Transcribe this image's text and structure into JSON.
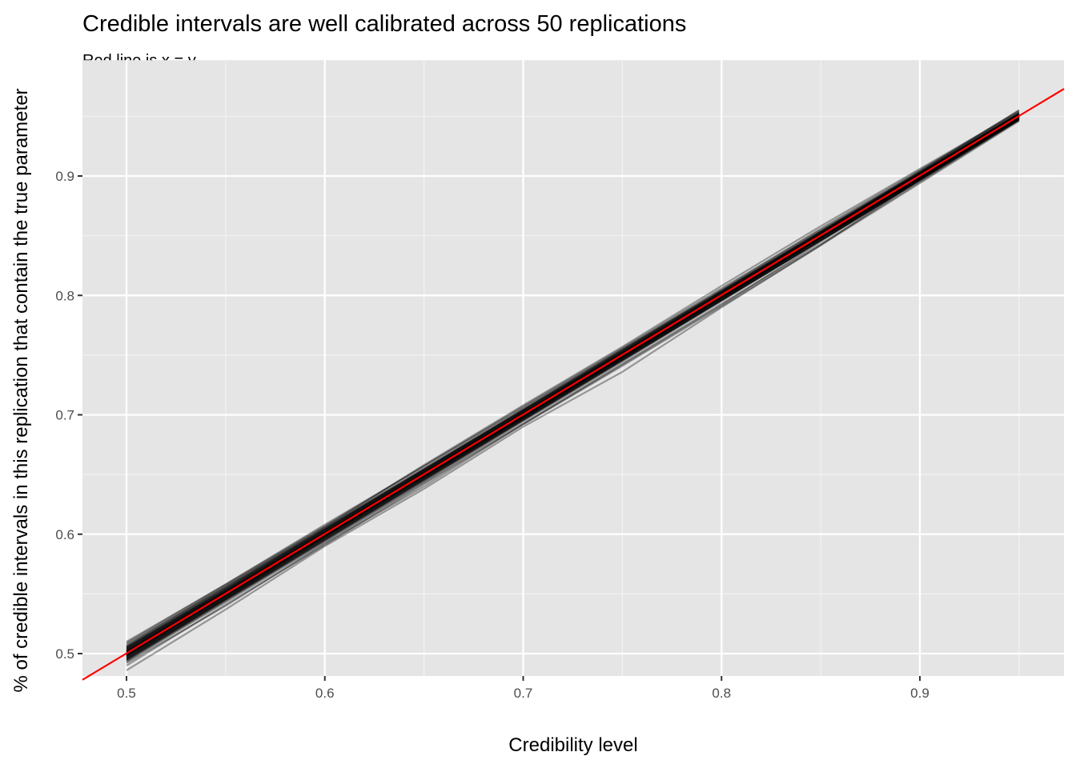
{
  "chart_data": {
    "type": "line",
    "title": "Credible intervals are well calibrated across 50 replications",
    "subtitle": "Red line is x = y",
    "xlabel": "Credibility level",
    "ylabel": "% of credible intervals in this replication that contain the true parameter",
    "xlim": [
      0.478,
      0.973
    ],
    "ylim": [
      0.481,
      0.997
    ],
    "x_ticks": [
      0.5,
      0.6,
      0.7,
      0.8,
      0.9
    ],
    "x_tick_labels": [
      "0.5",
      "0.6",
      "0.7",
      "0.8",
      "0.9"
    ],
    "y_ticks": [
      0.5,
      0.6,
      0.7,
      0.8,
      0.9
    ],
    "y_tick_labels": [
      "0.5",
      "0.6",
      "0.7",
      "0.8",
      "0.9"
    ],
    "grid": true,
    "legend": "none",
    "reference_line": {
      "label": "x = y",
      "slope": 1,
      "intercept": 0,
      "color": "#ff0000"
    },
    "series_color": "#000000",
    "panel_color": "#e5e5e5",
    "x": [
      0.5,
      0.55,
      0.6,
      0.65,
      0.7,
      0.75,
      0.8,
      0.85,
      0.9,
      0.95
    ],
    "replications": [
      [
        0.51,
        0.558,
        0.607,
        0.657,
        0.706,
        0.755,
        0.804,
        0.853,
        0.904,
        0.955
      ],
      [
        0.486,
        0.537,
        0.59,
        0.638,
        0.69,
        0.736,
        0.79,
        0.842,
        0.897,
        0.948
      ],
      [
        0.505,
        0.553,
        0.603,
        0.652,
        0.702,
        0.752,
        0.802,
        0.851,
        0.901,
        0.951
      ],
      [
        0.495,
        0.546,
        0.596,
        0.646,
        0.697,
        0.747,
        0.797,
        0.848,
        0.898,
        0.948
      ],
      [
        0.5,
        0.551,
        0.6,
        0.65,
        0.7,
        0.75,
        0.8,
        0.85,
        0.9,
        0.95
      ],
      [
        0.503,
        0.552,
        0.601,
        0.651,
        0.701,
        0.751,
        0.801,
        0.851,
        0.901,
        0.951
      ],
      [
        0.497,
        0.547,
        0.597,
        0.647,
        0.698,
        0.748,
        0.798,
        0.848,
        0.898,
        0.949
      ],
      [
        0.508,
        0.556,
        0.605,
        0.655,
        0.704,
        0.753,
        0.803,
        0.852,
        0.903,
        0.953
      ],
      [
        0.492,
        0.54,
        0.592,
        0.64,
        0.692,
        0.742,
        0.792,
        0.845,
        0.897,
        0.949
      ],
      [
        0.501,
        0.55,
        0.599,
        0.649,
        0.699,
        0.749,
        0.799,
        0.849,
        0.899,
        0.95
      ],
      [
        0.506,
        0.556,
        0.606,
        0.658,
        0.708,
        0.757,
        0.808,
        0.858,
        0.906,
        0.954
      ],
      [
        0.494,
        0.545,
        0.594,
        0.644,
        0.695,
        0.745,
        0.796,
        0.846,
        0.897,
        0.948
      ],
      [
        0.499,
        0.549,
        0.599,
        0.65,
        0.7,
        0.75,
        0.8,
        0.85,
        0.9,
        0.95
      ],
      [
        0.504,
        0.554,
        0.604,
        0.653,
        0.703,
        0.753,
        0.803,
        0.853,
        0.902,
        0.952
      ],
      [
        0.496,
        0.546,
        0.596,
        0.646,
        0.696,
        0.746,
        0.796,
        0.846,
        0.896,
        0.947
      ],
      [
        0.502,
        0.552,
        0.602,
        0.651,
        0.701,
        0.751,
        0.8,
        0.85,
        0.9,
        0.95
      ],
      [
        0.498,
        0.548,
        0.598,
        0.648,
        0.698,
        0.748,
        0.798,
        0.849,
        0.899,
        0.949
      ],
      [
        0.507,
        0.557,
        0.606,
        0.655,
        0.705,
        0.755,
        0.805,
        0.856,
        0.905,
        0.953
      ],
      [
        0.493,
        0.543,
        0.593,
        0.643,
        0.693,
        0.743,
        0.793,
        0.843,
        0.895,
        0.947
      ],
      [
        0.5,
        0.55,
        0.601,
        0.651,
        0.701,
        0.75,
        0.8,
        0.851,
        0.901,
        0.951
      ],
      [
        0.505,
        0.555,
        0.604,
        0.654,
        0.704,
        0.754,
        0.804,
        0.854,
        0.903,
        0.952
      ],
      [
        0.495,
        0.545,
        0.595,
        0.646,
        0.696,
        0.746,
        0.796,
        0.847,
        0.897,
        0.948
      ],
      [
        0.501,
        0.551,
        0.601,
        0.651,
        0.7,
        0.75,
        0.8,
        0.85,
        0.9,
        0.95
      ],
      [
        0.499,
        0.549,
        0.599,
        0.649,
        0.699,
        0.749,
        0.799,
        0.849,
        0.899,
        0.949
      ],
      [
        0.503,
        0.553,
        0.603,
        0.653,
        0.703,
        0.752,
        0.802,
        0.852,
        0.902,
        0.951
      ],
      [
        0.497,
        0.547,
        0.597,
        0.647,
        0.697,
        0.747,
        0.797,
        0.847,
        0.898,
        0.948
      ],
      [
        0.509,
        0.558,
        0.608,
        0.657,
        0.707,
        0.756,
        0.806,
        0.855,
        0.904,
        0.955
      ],
      [
        0.49,
        0.541,
        0.591,
        0.642,
        0.692,
        0.741,
        0.791,
        0.842,
        0.894,
        0.946
      ],
      [
        0.502,
        0.551,
        0.601,
        0.651,
        0.701,
        0.751,
        0.801,
        0.851,
        0.901,
        0.95
      ],
      [
        0.498,
        0.548,
        0.598,
        0.648,
        0.698,
        0.748,
        0.798,
        0.848,
        0.898,
        0.949
      ],
      [
        0.504,
        0.553,
        0.603,
        0.653,
        0.702,
        0.752,
        0.802,
        0.852,
        0.902,
        0.952
      ],
      [
        0.496,
        0.546,
        0.597,
        0.647,
        0.697,
        0.747,
        0.797,
        0.848,
        0.898,
        0.948
      ],
      [
        0.5,
        0.55,
        0.6,
        0.65,
        0.7,
        0.75,
        0.8,
        0.85,
        0.9,
        0.95
      ],
      [
        0.506,
        0.555,
        0.605,
        0.654,
        0.704,
        0.754,
        0.803,
        0.853,
        0.903,
        0.952
      ],
      [
        0.494,
        0.544,
        0.595,
        0.645,
        0.695,
        0.745,
        0.795,
        0.846,
        0.896,
        0.947
      ],
      [
        0.501,
        0.551,
        0.6,
        0.65,
        0.7,
        0.75,
        0.8,
        0.85,
        0.9,
        0.95
      ],
      [
        0.499,
        0.549,
        0.599,
        0.649,
        0.699,
        0.749,
        0.799,
        0.849,
        0.899,
        0.949
      ],
      [
        0.503,
        0.552,
        0.602,
        0.652,
        0.702,
        0.752,
        0.802,
        0.852,
        0.902,
        0.951
      ],
      [
        0.497,
        0.547,
        0.598,
        0.648,
        0.698,
        0.748,
        0.798,
        0.848,
        0.898,
        0.949
      ],
      [
        0.502,
        0.552,
        0.602,
        0.652,
        0.702,
        0.752,
        0.801,
        0.851,
        0.901,
        0.951
      ],
      [
        0.498,
        0.548,
        0.598,
        0.648,
        0.698,
        0.748,
        0.798,
        0.848,
        0.899,
        0.949
      ],
      [
        0.505,
        0.554,
        0.604,
        0.654,
        0.703,
        0.753,
        0.803,
        0.853,
        0.902,
        0.952
      ],
      [
        0.495,
        0.545,
        0.595,
        0.645,
        0.696,
        0.746,
        0.796,
        0.846,
        0.897,
        0.948
      ],
      [
        0.5,
        0.55,
        0.6,
        0.65,
        0.7,
        0.75,
        0.8,
        0.85,
        0.9,
        0.95
      ],
      [
        0.501,
        0.551,
        0.601,
        0.651,
        0.701,
        0.751,
        0.801,
        0.851,
        0.901,
        0.951
      ],
      [
        0.499,
        0.549,
        0.599,
        0.649,
        0.699,
        0.749,
        0.799,
        0.849,
        0.899,
        0.949
      ],
      [
        0.504,
        0.554,
        0.604,
        0.654,
        0.704,
        0.754,
        0.804,
        0.854,
        0.903,
        0.953
      ],
      [
        0.496,
        0.546,
        0.596,
        0.646,
        0.696,
        0.746,
        0.796,
        0.846,
        0.897,
        0.947
      ],
      [
        0.502,
        0.552,
        0.602,
        0.652,
        0.701,
        0.751,
        0.801,
        0.851,
        0.901,
        0.951
      ],
      [
        0.498,
        0.548,
        0.598,
        0.648,
        0.698,
        0.748,
        0.798,
        0.848,
        0.898,
        0.948
      ]
    ]
  }
}
